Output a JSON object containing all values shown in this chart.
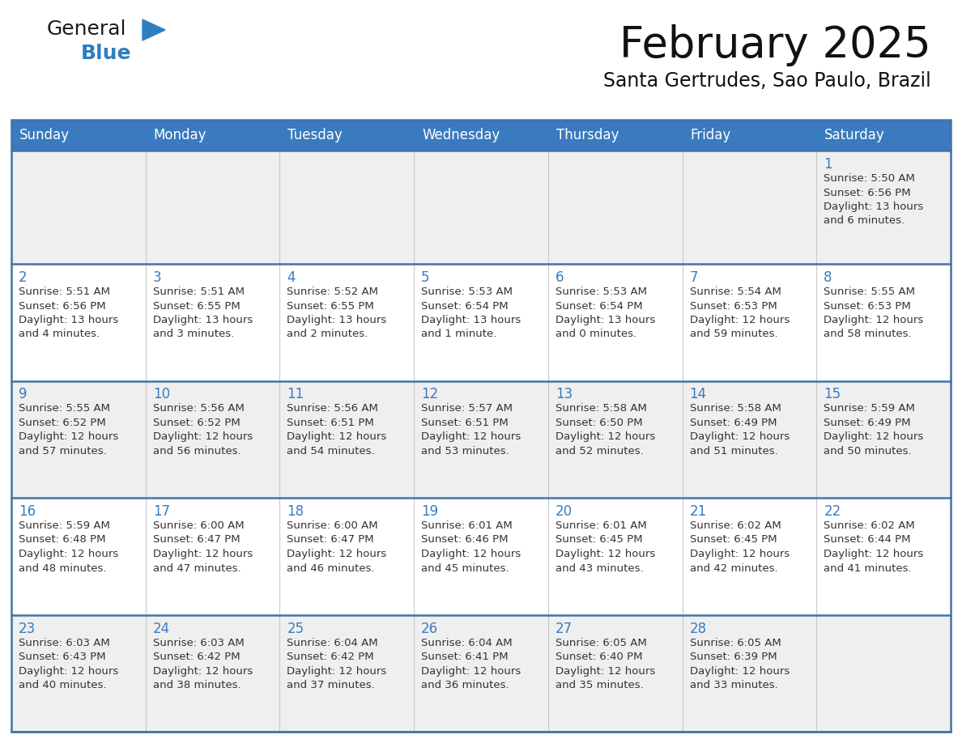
{
  "title": "February 2025",
  "subtitle": "Santa Gertrudes, Sao Paulo, Brazil",
  "days_of_week": [
    "Sunday",
    "Monday",
    "Tuesday",
    "Wednesday",
    "Thursday",
    "Friday",
    "Saturday"
  ],
  "header_bg": "#3a7abf",
  "header_text": "#ffffff",
  "row_bg_odd": "#efefef",
  "row_bg_even": "#ffffff",
  "border_color": "#4472a8",
  "cell_line_color": "#c8c8c8",
  "day_number_color": "#3a7abf",
  "text_color": "#333333",
  "logo_general_color": "#1a1a1a",
  "logo_blue_color": "#2e7fc0",
  "calendar_data": [
    [
      null,
      null,
      null,
      null,
      null,
      null,
      {
        "day": 1,
        "sunrise": "5:50 AM",
        "sunset": "6:56 PM",
        "daylight": "13 hours",
        "daylight2": "and 6 minutes."
      }
    ],
    [
      {
        "day": 2,
        "sunrise": "5:51 AM",
        "sunset": "6:56 PM",
        "daylight": "13 hours",
        "daylight2": "and 4 minutes."
      },
      {
        "day": 3,
        "sunrise": "5:51 AM",
        "sunset": "6:55 PM",
        "daylight": "13 hours",
        "daylight2": "and 3 minutes."
      },
      {
        "day": 4,
        "sunrise": "5:52 AM",
        "sunset": "6:55 PM",
        "daylight": "13 hours",
        "daylight2": "and 2 minutes."
      },
      {
        "day": 5,
        "sunrise": "5:53 AM",
        "sunset": "6:54 PM",
        "daylight": "13 hours",
        "daylight2": "and 1 minute."
      },
      {
        "day": 6,
        "sunrise": "5:53 AM",
        "sunset": "6:54 PM",
        "daylight": "13 hours",
        "daylight2": "and 0 minutes."
      },
      {
        "day": 7,
        "sunrise": "5:54 AM",
        "sunset": "6:53 PM",
        "daylight": "12 hours",
        "daylight2": "and 59 minutes."
      },
      {
        "day": 8,
        "sunrise": "5:55 AM",
        "sunset": "6:53 PM",
        "daylight": "12 hours",
        "daylight2": "and 58 minutes."
      }
    ],
    [
      {
        "day": 9,
        "sunrise": "5:55 AM",
        "sunset": "6:52 PM",
        "daylight": "12 hours",
        "daylight2": "and 57 minutes."
      },
      {
        "day": 10,
        "sunrise": "5:56 AM",
        "sunset": "6:52 PM",
        "daylight": "12 hours",
        "daylight2": "and 56 minutes."
      },
      {
        "day": 11,
        "sunrise": "5:56 AM",
        "sunset": "6:51 PM",
        "daylight": "12 hours",
        "daylight2": "and 54 minutes."
      },
      {
        "day": 12,
        "sunrise": "5:57 AM",
        "sunset": "6:51 PM",
        "daylight": "12 hours",
        "daylight2": "and 53 minutes."
      },
      {
        "day": 13,
        "sunrise": "5:58 AM",
        "sunset": "6:50 PM",
        "daylight": "12 hours",
        "daylight2": "and 52 minutes."
      },
      {
        "day": 14,
        "sunrise": "5:58 AM",
        "sunset": "6:49 PM",
        "daylight": "12 hours",
        "daylight2": "and 51 minutes."
      },
      {
        "day": 15,
        "sunrise": "5:59 AM",
        "sunset": "6:49 PM",
        "daylight": "12 hours",
        "daylight2": "and 50 minutes."
      }
    ],
    [
      {
        "day": 16,
        "sunrise": "5:59 AM",
        "sunset": "6:48 PM",
        "daylight": "12 hours",
        "daylight2": "and 48 minutes."
      },
      {
        "day": 17,
        "sunrise": "6:00 AM",
        "sunset": "6:47 PM",
        "daylight": "12 hours",
        "daylight2": "and 47 minutes."
      },
      {
        "day": 18,
        "sunrise": "6:00 AM",
        "sunset": "6:47 PM",
        "daylight": "12 hours",
        "daylight2": "and 46 minutes."
      },
      {
        "day": 19,
        "sunrise": "6:01 AM",
        "sunset": "6:46 PM",
        "daylight": "12 hours",
        "daylight2": "and 45 minutes."
      },
      {
        "day": 20,
        "sunrise": "6:01 AM",
        "sunset": "6:45 PM",
        "daylight": "12 hours",
        "daylight2": "and 43 minutes."
      },
      {
        "day": 21,
        "sunrise": "6:02 AM",
        "sunset": "6:45 PM",
        "daylight": "12 hours",
        "daylight2": "and 42 minutes."
      },
      {
        "day": 22,
        "sunrise": "6:02 AM",
        "sunset": "6:44 PM",
        "daylight": "12 hours",
        "daylight2": "and 41 minutes."
      }
    ],
    [
      {
        "day": 23,
        "sunrise": "6:03 AM",
        "sunset": "6:43 PM",
        "daylight": "12 hours",
        "daylight2": "and 40 minutes."
      },
      {
        "day": 24,
        "sunrise": "6:03 AM",
        "sunset": "6:42 PM",
        "daylight": "12 hours",
        "daylight2": "and 38 minutes."
      },
      {
        "day": 25,
        "sunrise": "6:04 AM",
        "sunset": "6:42 PM",
        "daylight": "12 hours",
        "daylight2": "and 37 minutes."
      },
      {
        "day": 26,
        "sunrise": "6:04 AM",
        "sunset": "6:41 PM",
        "daylight": "12 hours",
        "daylight2": "and 36 minutes."
      },
      {
        "day": 27,
        "sunrise": "6:05 AM",
        "sunset": "6:40 PM",
        "daylight": "12 hours",
        "daylight2": "and 35 minutes."
      },
      {
        "day": 28,
        "sunrise": "6:05 AM",
        "sunset": "6:39 PM",
        "daylight": "12 hours",
        "daylight2": "and 33 minutes."
      },
      null
    ]
  ]
}
